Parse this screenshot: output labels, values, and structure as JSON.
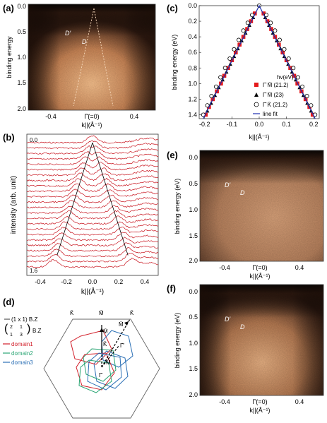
{
  "panels": {
    "a": {
      "label": "(a)",
      "ylabel": "binding energy",
      "xlabel": "k||(Å⁻¹)",
      "yticks": [
        "0.0",
        "0.5",
        "1.0",
        "1.5",
        "2.0"
      ],
      "xticks": [
        "-0.4",
        "Γ̄(=0)",
        "0.4"
      ],
      "annotations": [
        "D′",
        "D"
      ]
    },
    "b": {
      "label": "(b)",
      "ylabel": "intensity (arb. unit)",
      "xlabel": "k||(Å⁻¹)",
      "xticks": [
        "-0.4",
        "-0.2",
        "0.0",
        "0.2",
        "0.4"
      ],
      "top_label": "0.0",
      "bottom_label": "1.6"
    },
    "c": {
      "label": "(c)",
      "ylabel": "binding energy (eV)",
      "xlabel": "k||(Å⁻¹)",
      "yticks": [
        "0.0",
        "0.2",
        "0.4",
        "0.6",
        "0.8",
        "1.0",
        "1.2",
        "1.4"
      ],
      "xticks": [
        "-0.2",
        "-0.1",
        "0.0",
        "0.1",
        "0.2"
      ],
      "legend_title": "hv(eV)",
      "legend": [
        {
          "text": "Γ̄ M̄ (21.2)"
        },
        {
          "text": "Γ̄ M̄ (23)"
        },
        {
          "text": "Γ̄ K̄ (21.2)"
        },
        {
          "text": "line fit"
        }
      ]
    },
    "d": {
      "label": "(d)",
      "legend": [
        {
          "text": "(1 x 1) B.Z",
          "color": "#555555"
        },
        {
          "text": "B.Z",
          "color": "#555555"
        },
        {
          "text": "domain1",
          "color": "#d21f2a"
        },
        {
          "text": "domain2",
          "color": "#2aa574"
        },
        {
          "text": "domain3",
          "color": "#2a6fb5"
        }
      ],
      "matrix": [
        "2",
        "1",
        "1",
        "3"
      ],
      "points": [
        "K̄",
        "M̄",
        "K̄",
        "M̄",
        "M̄",
        "K̄",
        "Γ̄′",
        "Γ̄",
        "M̄"
      ]
    },
    "e": {
      "label": "(e)",
      "ylabel": "binding energy (eV)",
      "xlabel": "k||(Å⁻¹)",
      "yticks": [
        "0.0",
        "0.5",
        "1.0",
        "1.5",
        "2.0"
      ],
      "xticks": [
        "-0.4",
        "Γ̄(=0)",
        "0.4"
      ],
      "annotations": [
        "D′",
        "D"
      ]
    },
    "f": {
      "label": "(f)",
      "ylabel": "binding energy (eV)",
      "xlabel": "k||(Å⁻¹)",
      "yticks": [
        "0.0",
        "0.5",
        "1.0",
        "1.5",
        "2.0"
      ],
      "xticks": [
        "-0.4",
        "Γ̄(=0)",
        "0.4"
      ],
      "annotations": [
        "D′",
        "D"
      ]
    }
  },
  "chart_data": [
    {
      "panel": "c",
      "type": "scatter",
      "xlim": [
        -0.22,
        0.22
      ],
      "ylim": [
        1.45,
        0.0
      ],
      "series": [
        {
          "name": "Γ̄ M̄ (21.2)",
          "marker": "square",
          "color": "#e41a1c",
          "points": [
            [
              -0.196,
              1.4
            ],
            [
              -0.184,
              1.3
            ],
            [
              -0.17,
              1.2
            ],
            [
              -0.155,
              1.1
            ],
            [
              -0.14,
              1.0
            ],
            [
              -0.128,
              0.9
            ],
            [
              -0.114,
              0.8
            ],
            [
              -0.1,
              0.7
            ],
            [
              -0.086,
              0.6
            ],
            [
              -0.072,
              0.5
            ],
            [
              -0.058,
              0.4
            ],
            [
              -0.044,
              0.3
            ],
            [
              -0.03,
              0.2
            ],
            [
              -0.016,
              0.1
            ],
            [
              0.016,
              0.1
            ],
            [
              0.03,
              0.2
            ],
            [
              0.044,
              0.3
            ],
            [
              0.058,
              0.4
            ],
            [
              0.072,
              0.5
            ],
            [
              0.086,
              0.6
            ],
            [
              0.1,
              0.7
            ],
            [
              0.114,
              0.8
            ],
            [
              0.128,
              0.9
            ],
            [
              0.14,
              1.0
            ],
            [
              0.155,
              1.1
            ],
            [
              0.17,
              1.2
            ],
            [
              0.184,
              1.3
            ],
            [
              0.196,
              1.4
            ]
          ]
        },
        {
          "name": "Γ̄ M̄ (23)",
          "marker": "triangle",
          "color": "#000000",
          "points": [
            [
              -0.19,
              1.35
            ],
            [
              -0.176,
              1.25
            ],
            [
              -0.162,
              1.15
            ],
            [
              -0.148,
              1.05
            ],
            [
              -0.134,
              0.95
            ],
            [
              -0.12,
              0.85
            ],
            [
              -0.106,
              0.75
            ],
            [
              -0.092,
              0.65
            ],
            [
              -0.078,
              0.55
            ],
            [
              -0.064,
              0.45
            ],
            [
              -0.05,
              0.35
            ],
            [
              -0.036,
              0.25
            ],
            [
              -0.022,
              0.15
            ],
            [
              0.022,
              0.15
            ],
            [
              0.036,
              0.25
            ],
            [
              0.05,
              0.35
            ],
            [
              0.064,
              0.45
            ],
            [
              0.078,
              0.55
            ],
            [
              0.092,
              0.65
            ],
            [
              0.106,
              0.75
            ],
            [
              0.12,
              0.85
            ],
            [
              0.134,
              0.95
            ],
            [
              0.148,
              1.05
            ],
            [
              0.162,
              1.15
            ],
            [
              0.176,
              1.25
            ],
            [
              0.19,
              1.35
            ]
          ]
        },
        {
          "name": "Γ̄ K̄ (21.2)",
          "marker": "circle",
          "color": "#000000",
          "points": [
            [
              -0.205,
              1.4
            ],
            [
              -0.19,
              1.28
            ],
            [
              -0.175,
              1.16
            ],
            [
              -0.158,
              1.04
            ],
            [
              -0.142,
              0.92
            ],
            [
              -0.125,
              0.8
            ],
            [
              -0.108,
              0.68
            ],
            [
              -0.092,
              0.56
            ],
            [
              -0.075,
              0.44
            ],
            [
              -0.058,
              0.32
            ],
            [
              -0.042,
              0.22
            ],
            [
              -0.026,
              0.12
            ],
            [
              0.0,
              0.0
            ],
            [
              0.026,
              0.12
            ],
            [
              0.042,
              0.22
            ],
            [
              0.058,
              0.32
            ],
            [
              0.075,
              0.44
            ],
            [
              0.092,
              0.56
            ],
            [
              0.108,
              0.68
            ],
            [
              0.125,
              0.8
            ],
            [
              0.142,
              0.92
            ],
            [
              0.158,
              1.04
            ],
            [
              0.175,
              1.16
            ],
            [
              0.19,
              1.28
            ],
            [
              0.205,
              1.4
            ]
          ]
        },
        {
          "name": "line fit",
          "marker": "line",
          "color": "#1f2fb0",
          "points": [
            [
              -0.205,
              1.45
            ],
            [
              0.0,
              0.0
            ],
            [
              0.205,
              1.45
            ]
          ]
        }
      ]
    },
    {
      "panel": "b",
      "type": "line",
      "xlim": [
        -0.5,
        0.5
      ],
      "curve_count": 24,
      "energy_range": [
        0.0,
        1.6
      ],
      "guide_lines": [
        [
          [
            -0.27,
            1.45
          ],
          [
            0.0,
            0.0
          ]
        ],
        [
          [
            0.0,
            0.0
          ],
          [
            0.27,
            1.45
          ]
        ]
      ]
    }
  ]
}
